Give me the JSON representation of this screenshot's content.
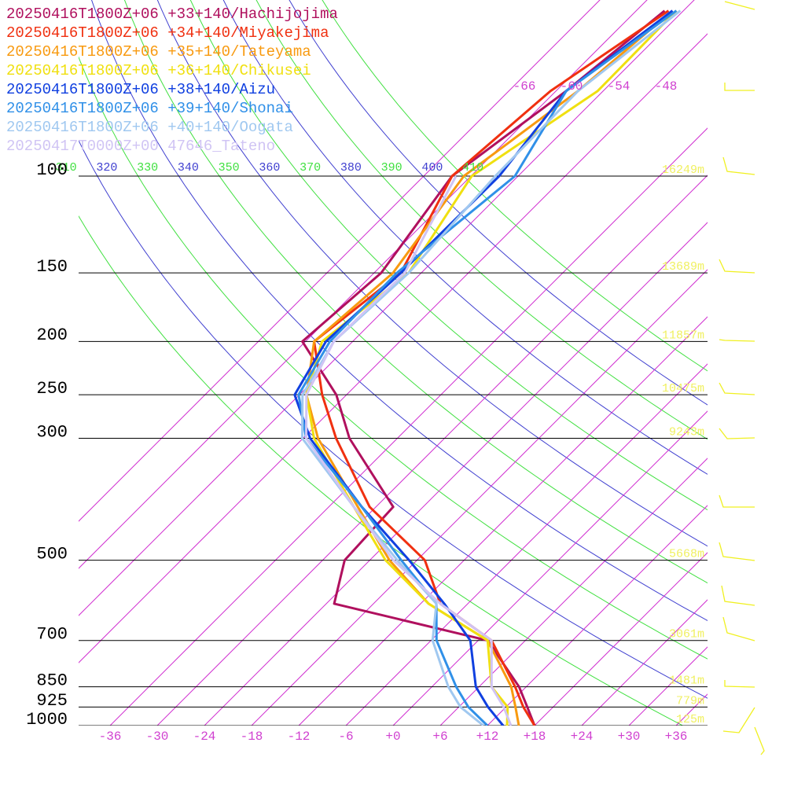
{
  "chart_data": {
    "type": "skewt",
    "legend": [
      {
        "text": "20250416T1800Z+06 +33+140/Hachijojima",
        "color": "#b0105e"
      },
      {
        "text": "20250416T1800Z+06 +34+140/Miyakejima",
        "color": "#f03010"
      },
      {
        "text": "20250416T1800Z+06 +35+140/Tateyama",
        "color": "#f89a10"
      },
      {
        "text": "20250416T1800Z+06 +36+140/Chikusei",
        "color": "#f0e010"
      },
      {
        "text": "20250416T1800Z+06 +38+140/Aizu",
        "color": "#1040e0"
      },
      {
        "text": "20250416T1800Z+06 +39+140/Shonai",
        "color": "#3090e8"
      },
      {
        "text": "20250416T1800Z+06 +40+140/Oogata",
        "color": "#a0c8f0"
      },
      {
        "text": "20250417T0000Z+00 47646_Tateno",
        "color": "#d0c4f4"
      }
    ],
    "pressure": [
      1000,
      925,
      850,
      700,
      600,
      500,
      400,
      300,
      250,
      200,
      150,
      100,
      70,
      50
    ],
    "series": [
      {
        "name": "Hachijojima",
        "color": "#b0105e",
        "values": [
          18,
          14.7,
          11.1,
          1.2,
          -23,
          -27.2,
          -27.8,
          -42.1,
          -49.3,
          -60.4,
          -59.1,
          -62.4,
          -58.7,
          -56.4
        ]
      },
      {
        "name": "Miyakejima",
        "color": "#f03010",
        "values": [
          18,
          14.2,
          10.6,
          1.7,
          -9.5,
          -17,
          -30.8,
          -43.8,
          -51.1,
          -58.9,
          -56.6,
          -62.4,
          -60.7,
          -55.9
        ]
      },
      {
        "name": "Tateyama",
        "color": "#f89a10",
        "values": [
          16,
          13.2,
          10.1,
          1.2,
          -11,
          -21.5,
          -32.3,
          -46.1,
          -53.1,
          -58.9,
          -57.6,
          -60.9,
          -57.2,
          -55.4
        ]
      },
      {
        "name": "Chikusei",
        "color": "#f0e010",
        "values": [
          14.5,
          12.2,
          7.6,
          1.2,
          -11,
          -22,
          -32.8,
          -46.6,
          -53.1,
          -57.9,
          -55.6,
          -59.9,
          -54.7,
          -54.9
        ]
      },
      {
        "name": "Aizu",
        "color": "#1040e0",
        "values": [
          14,
          9.7,
          5.6,
          -1,
          -9,
          -19,
          -31.8,
          -47.1,
          -54.6,
          -57.4,
          -56.6,
          -56.4,
          -58.7,
          -55.4
        ]
      },
      {
        "name": "Shonai",
        "color": "#3090e8",
        "values": [
          12,
          7.2,
          3.1,
          -5.3,
          -10,
          -20,
          -31.8,
          -47.6,
          -54.1,
          -56.9,
          -57.1,
          -54.4,
          -58.7,
          -54.9
        ]
      },
      {
        "name": "Oogata",
        "color": "#a0c8f0",
        "values": [
          11.5,
          6.2,
          2.1,
          -5.8,
          -10,
          -20.5,
          -32.8,
          -48.1,
          -53.6,
          -56.4,
          -55.6,
          -56.9,
          -57.2,
          -54.4
        ]
      },
      {
        "name": "Tateno",
        "color": "#d0c4f4",
        "values": [
          15,
          11.7,
          7.6,
          1.7,
          -9.5,
          -21,
          -32.8,
          -47.6,
          -53.1,
          -56.4,
          -56.1,
          -61.9,
          null,
          null
        ]
      }
    ],
    "yticks": [
      100,
      150,
      200,
      250,
      300,
      500,
      700,
      850,
      925,
      1000
    ],
    "height_labels": [
      {
        "pressure": 100,
        "label": "16249m"
      },
      {
        "pressure": 150,
        "label": "13689m"
      },
      {
        "pressure": 200,
        "label": "11857m"
      },
      {
        "pressure": 250,
        "label": "10475m"
      },
      {
        "pressure": 300,
        "label": "9243m"
      },
      {
        "pressure": 500,
        "label": "5668m"
      },
      {
        "pressure": 700,
        "label": "3061m"
      },
      {
        "pressure": 850,
        "label": "1481m"
      },
      {
        "pressure": 925,
        "label": "779m"
      },
      {
        "pressure": 1000,
        "label": "125m"
      }
    ],
    "xticks": [
      -36,
      -30,
      -24,
      -18,
      -12,
      -6,
      {
        "value": 0,
        "label": "+0"
      },
      {
        "value": 6,
        "label": "+6"
      },
      {
        "value": 12,
        "label": "+12"
      },
      {
        "value": 18,
        "label": "+18"
      },
      {
        "value": 24,
        "label": "+24"
      },
      {
        "value": 30,
        "label": "+30"
      },
      {
        "value": 36,
        "label": "+36"
      }
    ],
    "isotherm_labels": [
      -66,
      -60,
      -54,
      -48
    ],
    "theta_labels": [
      {
        "value": 310,
        "color": "#40e040"
      },
      {
        "value": 320,
        "color": "#4040d0"
      },
      {
        "value": 330,
        "color": "#40e040"
      },
      {
        "value": 340,
        "color": "#4040d0"
      },
      {
        "value": 350,
        "color": "#40e040"
      },
      {
        "value": 360,
        "color": "#4040d0"
      },
      {
        "value": 370,
        "color": "#40e040"
      },
      {
        "value": 380,
        "color": "#4040d0"
      },
      {
        "value": 390,
        "color": "#40e040"
      },
      {
        "value": 400,
        "color": "#4040d0"
      },
      {
        "value": 410,
        "color": "#40e040"
      }
    ]
  }
}
